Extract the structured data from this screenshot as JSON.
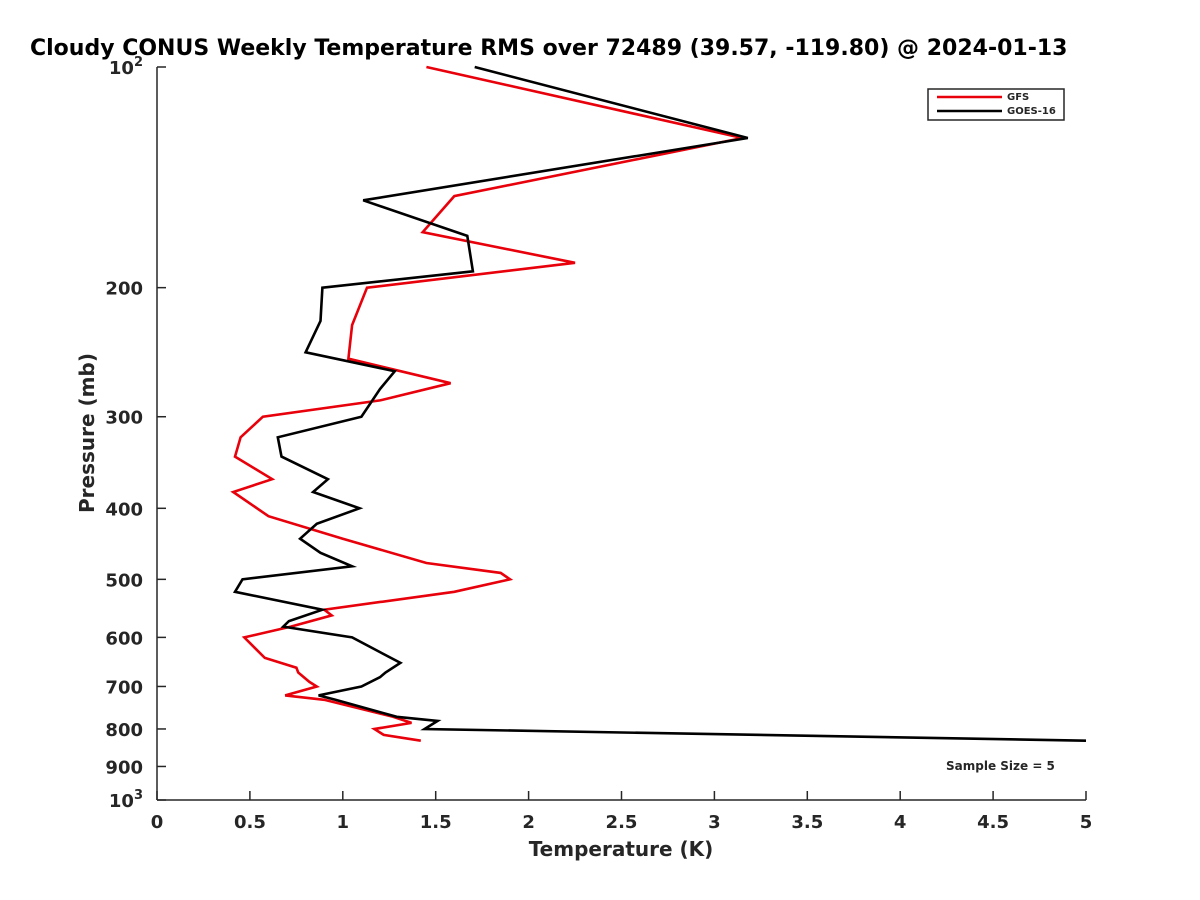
{
  "chart_data": {
    "type": "line",
    "title": "Cloudy CONUS Weekly Temperature RMS over 72489 (39.57, -119.80) @ 2024-01-13",
    "xlabel": "Temperature (K)",
    "ylabel": "Pressure (mb)",
    "xlim": [
      0,
      5
    ],
    "ylim": [
      100,
      1000
    ],
    "y_scale": "log",
    "y_reversed": true,
    "grid": false,
    "legend_position": "top-right",
    "x_ticks": [
      "0",
      "0.5",
      "1",
      "1.5",
      "2",
      "2.5",
      "3",
      "3.5",
      "4",
      "4.5",
      "5"
    ],
    "y_ticks": [
      {
        "value": 100,
        "base": "10",
        "exp": "2"
      },
      {
        "value": 200,
        "label": "200"
      },
      {
        "value": 300,
        "label": "300"
      },
      {
        "value": 400,
        "label": "400"
      },
      {
        "value": 500,
        "label": "500"
      },
      {
        "value": 600,
        "label": "600"
      },
      {
        "value": 700,
        "label": "700"
      },
      {
        "value": 800,
        "label": "800"
      },
      {
        "value": 900,
        "label": "900"
      },
      {
        "value": 1000,
        "base": "10",
        "exp": "3"
      }
    ],
    "annotation": "Sample Size = 5",
    "series": [
      {
        "name": "GFS",
        "color": "#e8000b",
        "points": [
          [
            1.45,
            100
          ],
          [
            3.15,
            125
          ],
          [
            1.6,
            150
          ],
          [
            1.43,
            168
          ],
          [
            2.25,
            185
          ],
          [
            1.13,
            200
          ],
          [
            1.05,
            225
          ],
          [
            1.03,
            250
          ],
          [
            1.58,
            270
          ],
          [
            1.2,
            285
          ],
          [
            0.57,
            300
          ],
          [
            0.45,
            320
          ],
          [
            0.42,
            340
          ],
          [
            0.62,
            365
          ],
          [
            0.41,
            380
          ],
          [
            0.6,
            410
          ],
          [
            1.0,
            440
          ],
          [
            1.45,
            475
          ],
          [
            1.85,
            490
          ],
          [
            1.9,
            500
          ],
          [
            1.6,
            520
          ],
          [
            0.9,
            550
          ],
          [
            0.94,
            560
          ],
          [
            0.72,
            580
          ],
          [
            0.47,
            600
          ],
          [
            0.58,
            640
          ],
          [
            0.75,
            660
          ],
          [
            0.76,
            670
          ],
          [
            0.82,
            690
          ],
          [
            0.86,
            700
          ],
          [
            0.69,
            720
          ],
          [
            0.9,
            730
          ],
          [
            1.27,
            770
          ],
          [
            1.37,
            785
          ],
          [
            1.17,
            800
          ],
          [
            1.22,
            815
          ],
          [
            1.42,
            830
          ]
        ]
      },
      {
        "name": "GOES-16",
        "color": "#000000",
        "points": [
          [
            1.71,
            100
          ],
          [
            3.18,
            125
          ],
          [
            1.11,
            152
          ],
          [
            1.67,
            170
          ],
          [
            1.7,
            190
          ],
          [
            0.89,
            200
          ],
          [
            0.88,
            222
          ],
          [
            0.8,
            245
          ],
          [
            1.28,
            260
          ],
          [
            1.2,
            275
          ],
          [
            1.1,
            300
          ],
          [
            0.65,
            320
          ],
          [
            0.67,
            340
          ],
          [
            0.92,
            365
          ],
          [
            0.84,
            380
          ],
          [
            1.09,
            400
          ],
          [
            0.86,
            420
          ],
          [
            0.77,
            440
          ],
          [
            0.88,
            460
          ],
          [
            1.05,
            480
          ],
          [
            0.46,
            500
          ],
          [
            0.42,
            520
          ],
          [
            0.89,
            550
          ],
          [
            0.71,
            570
          ],
          [
            0.68,
            580
          ],
          [
            1.05,
            600
          ],
          [
            1.31,
            650
          ],
          [
            1.23,
            670
          ],
          [
            1.2,
            680
          ],
          [
            1.1,
            700
          ],
          [
            0.87,
            720
          ],
          [
            0.96,
            730
          ],
          [
            1.29,
            770
          ],
          [
            1.51,
            780
          ],
          [
            1.44,
            800
          ],
          [
            5.0,
            830
          ]
        ]
      }
    ]
  }
}
